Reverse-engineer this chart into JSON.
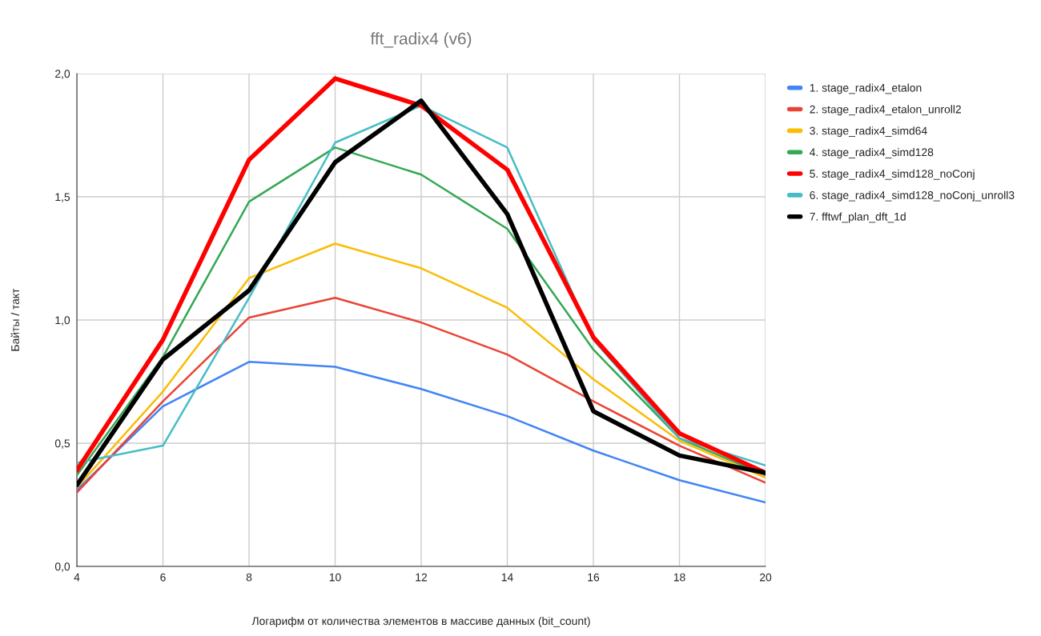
{
  "chart_data": {
    "type": "line",
    "title": "fft_radix4 (v6)",
    "xlabel": "Логарифм от количества элементов в массиве данных (bit_count)",
    "ylabel": "Байты / такт",
    "x": [
      4,
      6,
      8,
      10,
      12,
      14,
      16,
      18,
      20
    ],
    "series": [
      {
        "name": "1. stage_radix4_etalon",
        "color": "#4285f4",
        "values": [
          0.31,
          0.65,
          0.83,
          0.81,
          0.72,
          0.61,
          0.47,
          0.35,
          0.26
        ]
      },
      {
        "name": "2. stage_radix4_etalon_unroll2",
        "color": "#ea4335",
        "values": [
          0.3,
          0.67,
          1.01,
          1.09,
          0.99,
          0.86,
          0.67,
          0.49,
          0.34
        ]
      },
      {
        "name": "3. stage_radix4_simd64",
        "color": "#fbbc04",
        "values": [
          0.32,
          0.71,
          1.17,
          1.31,
          1.21,
          1.05,
          0.76,
          0.51,
          0.36
        ]
      },
      {
        "name": "4. stage_radix4_simd128",
        "color": "#34a853",
        "values": [
          0.37,
          0.85,
          1.48,
          1.7,
          1.59,
          1.37,
          0.88,
          0.52,
          0.37
        ]
      },
      {
        "name": "5. stage_radix4_simd128_noConj",
        "color": "#ff0000",
        "values": [
          0.39,
          0.92,
          1.65,
          1.98,
          1.87,
          1.61,
          0.93,
          0.54,
          0.38
        ]
      },
      {
        "name": "6. stage_radix4_simd128_noConj_unroll3",
        "color": "#46bdc6",
        "values": [
          0.42,
          0.49,
          1.09,
          1.72,
          1.87,
          1.7,
          0.92,
          0.52,
          0.41
        ]
      },
      {
        "name": "7. fftwf_plan_dft_1d",
        "color": "#000000",
        "values": [
          0.33,
          0.84,
          1.12,
          1.64,
          1.89,
          1.43,
          0.63,
          0.45,
          0.38
        ]
      }
    ],
    "xlim": [
      4,
      20
    ],
    "xticks": [
      4,
      6,
      8,
      10,
      12,
      14,
      16,
      18,
      20
    ],
    "ylim": [
      0,
      2
    ],
    "yticks": [
      {
        "value": 0,
        "label": "0,0"
      },
      {
        "value": 0.5,
        "label": "0,5"
      },
      {
        "value": 1,
        "label": "1,0"
      },
      {
        "value": 1.5,
        "label": "1,5"
      },
      {
        "value": 2,
        "label": "2,0"
      }
    ],
    "grid": true,
    "legend": "top right",
    "marker": "none",
    "line_style": "solid"
  }
}
